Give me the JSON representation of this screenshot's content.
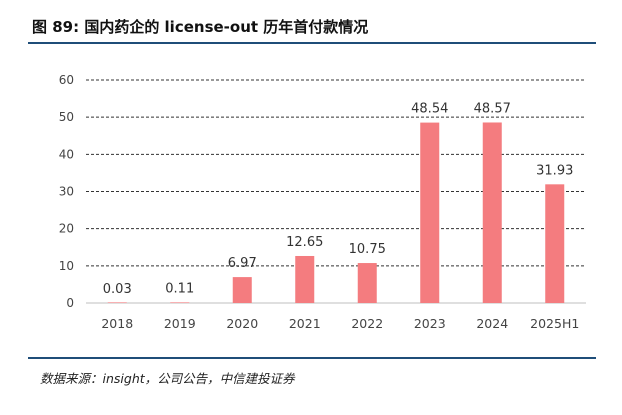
{
  "figure": {
    "title": "图 89:  国内药企的 license-out 历年首付款情况",
    "source": "数据来源：insight，公司公告，中信建投证券"
  },
  "chart_data": {
    "type": "bar",
    "title": "",
    "xlabel": "",
    "ylabel": "",
    "categories": [
      "2018",
      "2019",
      "2020",
      "2021",
      "2022",
      "2023",
      "2024",
      "2025H1"
    ],
    "values": [
      0.03,
      0.11,
      6.97,
      12.65,
      10.75,
      48.54,
      48.57,
      31.93
    ],
    "data_labels": [
      "0.03",
      "0.11",
      "6.97",
      "12.65",
      "10.75",
      "48.54",
      "48.57",
      "31.93"
    ],
    "ylim": [
      0,
      60
    ],
    "yticks": [
      0,
      10,
      20,
      30,
      40,
      50,
      60
    ],
    "ytick_labels": [
      "0",
      "10",
      "20",
      "30",
      "40",
      "50",
      "60"
    ],
    "grid": "dashed-horizontal",
    "legend": "none",
    "bar_color": "#f47c7f",
    "axis_color": "#bfbfbf",
    "grid_color": "#333333"
  }
}
